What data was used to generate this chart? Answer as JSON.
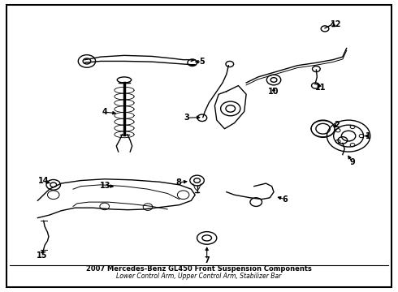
{
  "title": "2007 Mercedes-Benz GL450 Front Suspension Components",
  "subtitle_lines": [
    "Lower Control Arm",
    "Upper Control Arm",
    "Stabilizer Bar"
  ],
  "bg_color": "#ffffff",
  "line_color": "#000000",
  "text_color": "#000000",
  "border_color": "#000000",
  "figsize": [
    4.9,
    3.6
  ],
  "dpi": 100
}
